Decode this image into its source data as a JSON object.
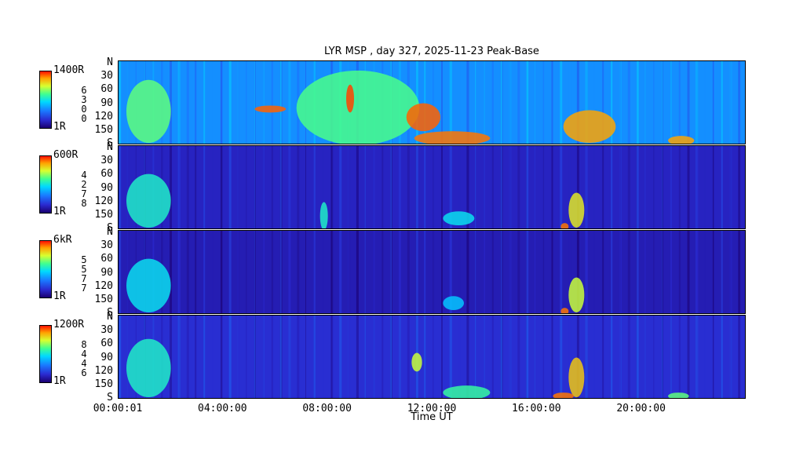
{
  "chart_data": {
    "type": "heatmap",
    "title": "LYR MSP , day 327, 2025-11-23 Peak-Base",
    "xlabel": "Time UT",
    "x_ticks": [
      "00:00:01",
      "04:00:00",
      "08:00:00",
      "12:00:00",
      "16:00:00",
      "20:00:00"
    ],
    "x_range_hours": [
      0,
      24
    ],
    "y_ticks": [
      "N",
      "30",
      "60",
      "90",
      "120",
      "150",
      "S"
    ],
    "y_range_deg": [
      0,
      180
    ],
    "colormap": [
      "#1a0070",
      "#2a2ad0",
      "#1a78ff",
      "#00d8ff",
      "#40ff90",
      "#d8ff30",
      "#ffa000",
      "#ff1000"
    ],
    "panels": [
      {
        "cbar_max": "1400R",
        "cbar_min": "1R",
        "cbar_mid": [
          "6",
          "3",
          "0",
          "0"
        ],
        "background_level": 0.32,
        "bright_regions": [
          {
            "t0": 0.3,
            "t1": 2.0,
            "y0": 40,
            "y1": 175,
            "level": 0.6
          },
          {
            "t0": 5.2,
            "t1": 6.4,
            "y0": 95,
            "y1": 110,
            "level": 0.92
          },
          {
            "t0": 6.8,
            "t1": 11.5,
            "y0": 20,
            "y1": 180,
            "level": 0.58
          },
          {
            "t0": 8.7,
            "t1": 9.0,
            "y0": 50,
            "y1": 110,
            "level": 0.95
          },
          {
            "t0": 11.0,
            "t1": 12.3,
            "y0": 90,
            "y1": 150,
            "level": 0.92
          },
          {
            "t0": 11.3,
            "t1": 14.2,
            "y0": 150,
            "y1": 180,
            "level": 0.9
          },
          {
            "t0": 17.0,
            "t1": 19.0,
            "y0": 105,
            "y1": 175,
            "level": 0.85
          },
          {
            "t0": 21.0,
            "t1": 22.0,
            "y0": 160,
            "y1": 180,
            "level": 0.85
          }
        ]
      },
      {
        "cbar_max": "600R",
        "cbar_min": "1R",
        "cbar_mid": [
          "4",
          "2",
          "7",
          "8"
        ],
        "background_level": 0.12,
        "bright_regions": [
          {
            "t0": 0.3,
            "t1": 2.0,
            "y0": 60,
            "y1": 175,
            "level": 0.5
          },
          {
            "t0": 7.7,
            "t1": 8.0,
            "y0": 120,
            "y1": 180,
            "level": 0.5
          },
          {
            "t0": 12.4,
            "t1": 13.6,
            "y0": 140,
            "y1": 170,
            "level": 0.45
          },
          {
            "t0": 17.2,
            "t1": 17.8,
            "y0": 100,
            "y1": 175,
            "level": 0.75
          },
          {
            "t0": 16.9,
            "t1": 17.2,
            "y0": 165,
            "y1": 180,
            "level": 0.9
          }
        ]
      },
      {
        "cbar_max": "6kR",
        "cbar_min": "1R",
        "cbar_mid": [
          "5",
          "5",
          "7",
          "7"
        ],
        "background_level": 0.1,
        "bright_regions": [
          {
            "t0": 0.3,
            "t1": 2.0,
            "y0": 60,
            "y1": 175,
            "level": 0.45
          },
          {
            "t0": 12.4,
            "t1": 13.2,
            "y0": 140,
            "y1": 170,
            "level": 0.4
          },
          {
            "t0": 17.2,
            "t1": 17.8,
            "y0": 100,
            "y1": 175,
            "level": 0.7
          },
          {
            "t0": 16.9,
            "t1": 17.2,
            "y0": 165,
            "y1": 180,
            "level": 0.9
          }
        ]
      },
      {
        "cbar_max": "1200R",
        "cbar_min": "1R",
        "cbar_mid": [
          "8",
          "4",
          "4",
          "6"
        ],
        "background_level": 0.15,
        "bright_regions": [
          {
            "t0": 0.3,
            "t1": 2.0,
            "y0": 50,
            "y1": 175,
            "level": 0.5
          },
          {
            "t0": 11.2,
            "t1": 11.6,
            "y0": 80,
            "y1": 120,
            "level": 0.7
          },
          {
            "t0": 12.4,
            "t1": 14.2,
            "y0": 150,
            "y1": 180,
            "level": 0.55
          },
          {
            "t0": 17.2,
            "t1": 17.8,
            "y0": 90,
            "y1": 175,
            "level": 0.8
          },
          {
            "t0": 16.6,
            "t1": 17.4,
            "y0": 165,
            "y1": 180,
            "level": 0.9
          },
          {
            "t0": 21.0,
            "t1": 21.8,
            "y0": 165,
            "y1": 180,
            "level": 0.6
          }
        ]
      }
    ]
  }
}
